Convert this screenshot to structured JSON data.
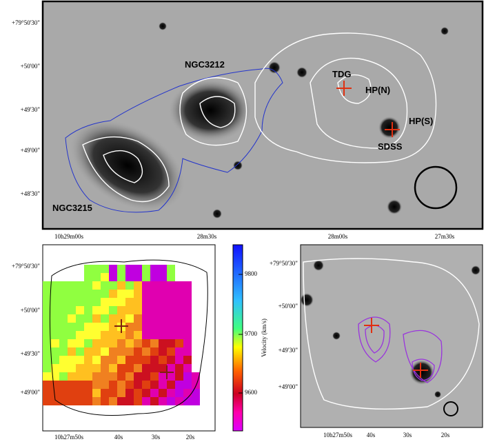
{
  "top_panel": {
    "labels": [
      "NGC3212",
      "TDG",
      "HP(N)",
      "HP(S)",
      "SDSS",
      "NGC3215"
    ],
    "y_ticks": [
      "+79°50'30\"",
      "+50'00\"",
      "+49'30\"",
      "+49'00\"",
      "+48'30\""
    ],
    "x_ticks": [
      "10h29m00s",
      "28m30s",
      "28m00s",
      "27m30s"
    ]
  },
  "bottom_left": {
    "y_ticks": [
      "+79°50'30\"",
      "+50'00\"",
      "+49'30\"",
      "+49'00\""
    ],
    "x_ticks": [
      "10h27m50s",
      "40s",
      "30s",
      "20s"
    ],
    "colorbar": {
      "label": "Velocity (km/s)",
      "ticks": [
        9800,
        9700,
        9600
      ]
    }
  },
  "bottom_right": {
    "y_ticks": [
      "+79°50'30\"",
      "+50'00\"",
      "+49'30\"",
      "+49'00\""
    ],
    "x_ticks": [
      "10h27m50s",
      "40s",
      "30s",
      "20s"
    ]
  }
}
